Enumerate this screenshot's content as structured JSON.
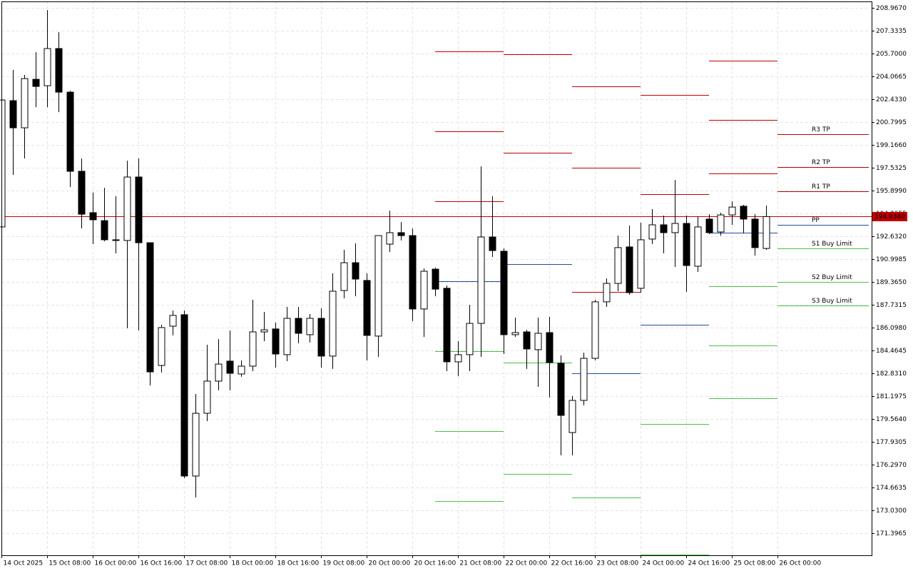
{
  "chart_data": {
    "type": "candlestick",
    "categories": [
      "14 Oct 2025",
      null,
      null,
      null,
      "15 Oct 08:00",
      null,
      null,
      null,
      "16 Oct 00:00",
      null,
      null,
      null,
      "16 Oct 16:00",
      null,
      null,
      null,
      "17 Oct 08:00",
      null,
      null,
      null,
      "18 Oct 00:00",
      null,
      null,
      null,
      "18 Oct 16:00",
      null,
      null,
      null,
      "19 Oct 08:00",
      null,
      null,
      null,
      "20 Oct 00:00",
      null,
      null,
      null,
      "20 Oct 16:00",
      null,
      null,
      null,
      "21 Oct 08:00",
      null,
      null,
      null,
      "22 Oct 00:00",
      null,
      null,
      null,
      "22 Oct 16:00",
      null,
      null,
      null,
      "23 Oct 08:00",
      null,
      null,
      null,
      "24 Oct 00:00",
      null,
      null,
      null,
      "24 Oct 16:00",
      null,
      null,
      null,
      "25 Oct 08:00",
      null,
      null,
      null,
      "26 Oct 00:00"
    ],
    "open": [
      193.3,
      202.33,
      200.39,
      203.86,
      203.4,
      206.06,
      202.94,
      197.28,
      194.32,
      193.75,
      192.38,
      192.33,
      196.87,
      192.17,
      183.39,
      186.2,
      187.02,
      175.48,
      179.97,
      182.27,
      183.7,
      182.78,
      183.34,
      185.79,
      186.0,
      184.16,
      186.76,
      185.59,
      186.76,
      184.06,
      188.75,
      190.74,
      189.47,
      185.49,
      192.07,
      192.89,
      192.68,
      187.43,
      190.28,
      188.91,
      183.65,
      184.16,
      186.4,
      192.58,
      191.56,
      185.59,
      185.79,
      184.52,
      185.74,
      183.55,
      178.59,
      180.89,
      183.9,
      187.94,
      189.26,
      191.87,
      188.91,
      192.43,
      193.45,
      192.89,
      193.55,
      190.49,
      193.86,
      192.94,
      194.16,
      194.78,
      193.86,
      191.76,
      null
    ],
    "high": [
      202.38,
      204.53,
      204.17,
      205.8,
      208.81,
      207.23,
      203.05,
      198.2,
      195.75,
      196.1,
      195.49,
      198.04,
      198.2,
      192.17,
      186.3,
      187.32,
      187.32,
      181.35,
      184.87,
      185.28,
      185.89,
      183.75,
      188.09,
      187.22,
      186.46,
      187.58,
      187.58,
      187.07,
      187.48,
      189.98,
      191.66,
      192.12,
      189.98,
      192.68,
      194.47,
      193.65,
      193.19,
      190.33,
      190.39,
      189.11,
      185.13,
      187.73,
      197.63,
      195.49,
      191.76,
      186.81,
      185.94,
      186.81,
      186.86,
      184.11,
      181.2,
      184.31,
      188.09,
      189.62,
      192.68,
      193.4,
      193.6,
      194.57,
      194.11,
      196.66,
      194.11,
      194.06,
      194.21,
      194.32,
      195.13,
      194.88,
      194.21,
      194.83,
      null
    ],
    "low": [
      193.3,
      197.02,
      198.2,
      201.87,
      201.87,
      201.51,
      196.15,
      193.19,
      192.07,
      192.27,
      191.41,
      186.05,
      185.89,
      181.96,
      182.88,
      185.54,
      175.33,
      173.95,
      179.41,
      181.61,
      181.61,
      182.58,
      182.98,
      185.13,
      183.24,
      183.7,
      184.97,
      185.03,
      183.24,
      183.14,
      188.19,
      188.34,
      183.75,
      184.0,
      191.51,
      192.33,
      186.56,
      185.43,
      188.34,
      182.98,
      182.63,
      182.98,
      184.0,
      191.15,
      184.21,
      185.43,
      183.14,
      181.86,
      181.1,
      176.96,
      176.96,
      180.53,
      183.75,
      187.58,
      188.7,
      188.45,
      188.6,
      192.07,
      191.41,
      190.44,
      188.65,
      190.08,
      192.79,
      192.68,
      193.45,
      192.84,
      191.25,
      191.66,
      null
    ],
    "close": [
      202.38,
      200.39,
      203.91,
      203.35,
      206.06,
      202.94,
      197.28,
      194.21,
      193.81,
      192.38,
      192.33,
      196.87,
      192.17,
      182.93,
      186.1,
      186.97,
      175.48,
      179.97,
      182.27,
      183.49,
      182.83,
      183.34,
      185.79,
      185.94,
      184.21,
      186.76,
      185.69,
      186.76,
      184.06,
      188.7,
      190.74,
      189.57,
      185.54,
      192.68,
      192.89,
      192.68,
      187.43,
      190.13,
      188.85,
      183.65,
      184.16,
      186.4,
      192.58,
      191.61,
      185.59,
      185.74,
      184.57,
      185.69,
      183.6,
      179.82,
      180.89,
      183.9,
      187.94,
      189.26,
      191.82,
      188.6,
      192.38,
      193.45,
      192.89,
      193.55,
      190.54,
      193.3,
      192.89,
      194.16,
      194.72,
      193.86,
      191.82,
      194.04,
      null
    ],
    "bull_color": "#ffffff",
    "bear_color": "#000000",
    "levels": [
      {
        "name": "R3 TP",
        "color": "#c00000",
        "values": [
          205.85,
          null,
          203.35,
          null,
          205.19,
          199.93
        ]
      },
      {
        "name": "R2 TP",
        "color": "#c00000",
        "values": [
          200.14,
          205.65,
          197.53,
          202.74,
          200.95,
          197.58
        ]
      },
      {
        "name": "R1 TP",
        "color": "#c00000",
        "values": [
          195.13,
          198.6,
          188.65,
          195.64,
          197.12,
          195.85
        ]
      },
      {
        "name": "PP",
        "color": "#1f4e9b",
        "values": [
          189.42,
          190.64,
          182.83,
          186.3,
          192.89,
          193.45
        ]
      },
      {
        "name": "S1 Buy Limit",
        "color": "#4cbf4c",
        "values": [
          184.41,
          183.6,
          173.95,
          179.21,
          189.06,
          191.76
        ]
      },
      {
        "name": "S2 Buy Limit",
        "color": "#4cbf4c",
        "values": [
          178.7,
          175.63,
          null,
          169.87,
          184.82,
          189.37
        ]
      },
      {
        "name": "S3 Buy Limit",
        "color": "#4cbf4c",
        "values": [
          173.69,
          null,
          null,
          null,
          181.04,
          187.68
        ]
      }
    ],
    "current_price": {
      "value": 194.038,
      "label": "194.0380"
    },
    "current_price_color": "#c00000",
    "ylim": [
      169.81,
      209.43
    ],
    "yticks": [
      {
        "value": 208.967,
        "label": "208.9670"
      },
      {
        "value": 207.3335,
        "label": "207.3335"
      },
      {
        "value": 205.7,
        "label": "205.7000"
      },
      {
        "value": 204.0665,
        "label": "204.0665"
      },
      {
        "value": 202.433,
        "label": "202.4330"
      },
      {
        "value": 200.7995,
        "label": "200.7995"
      },
      {
        "value": 199.166,
        "label": "199.1660"
      },
      {
        "value": 197.5325,
        "label": "197.5325"
      },
      {
        "value": 195.899,
        "label": "195.8990"
      },
      {
        "value": 194.2655,
        "label": "194.2655"
      },
      {
        "value": 192.632,
        "label": "192.6320"
      },
      {
        "value": 190.9985,
        "label": "190.9985"
      },
      {
        "value": 189.365,
        "label": "189.3650"
      },
      {
        "value": 187.7315,
        "label": "187.7315"
      },
      {
        "value": 186.098,
        "label": "186.0980"
      },
      {
        "value": 184.4645,
        "label": "184.4645"
      },
      {
        "value": 182.831,
        "label": "182.8310"
      },
      {
        "value": 181.1975,
        "label": "181.1975"
      },
      {
        "value": 179.564,
        "label": "179.5640"
      },
      {
        "value": 177.9305,
        "label": "177.9305"
      },
      {
        "value": 176.297,
        "label": "176.2970"
      },
      {
        "value": 174.6635,
        "label": "174.6635"
      },
      {
        "value": 173.03,
        "label": "173.0300"
      },
      {
        "value": 171.3965,
        "label": "171.3965"
      }
    ],
    "grid": true
  }
}
